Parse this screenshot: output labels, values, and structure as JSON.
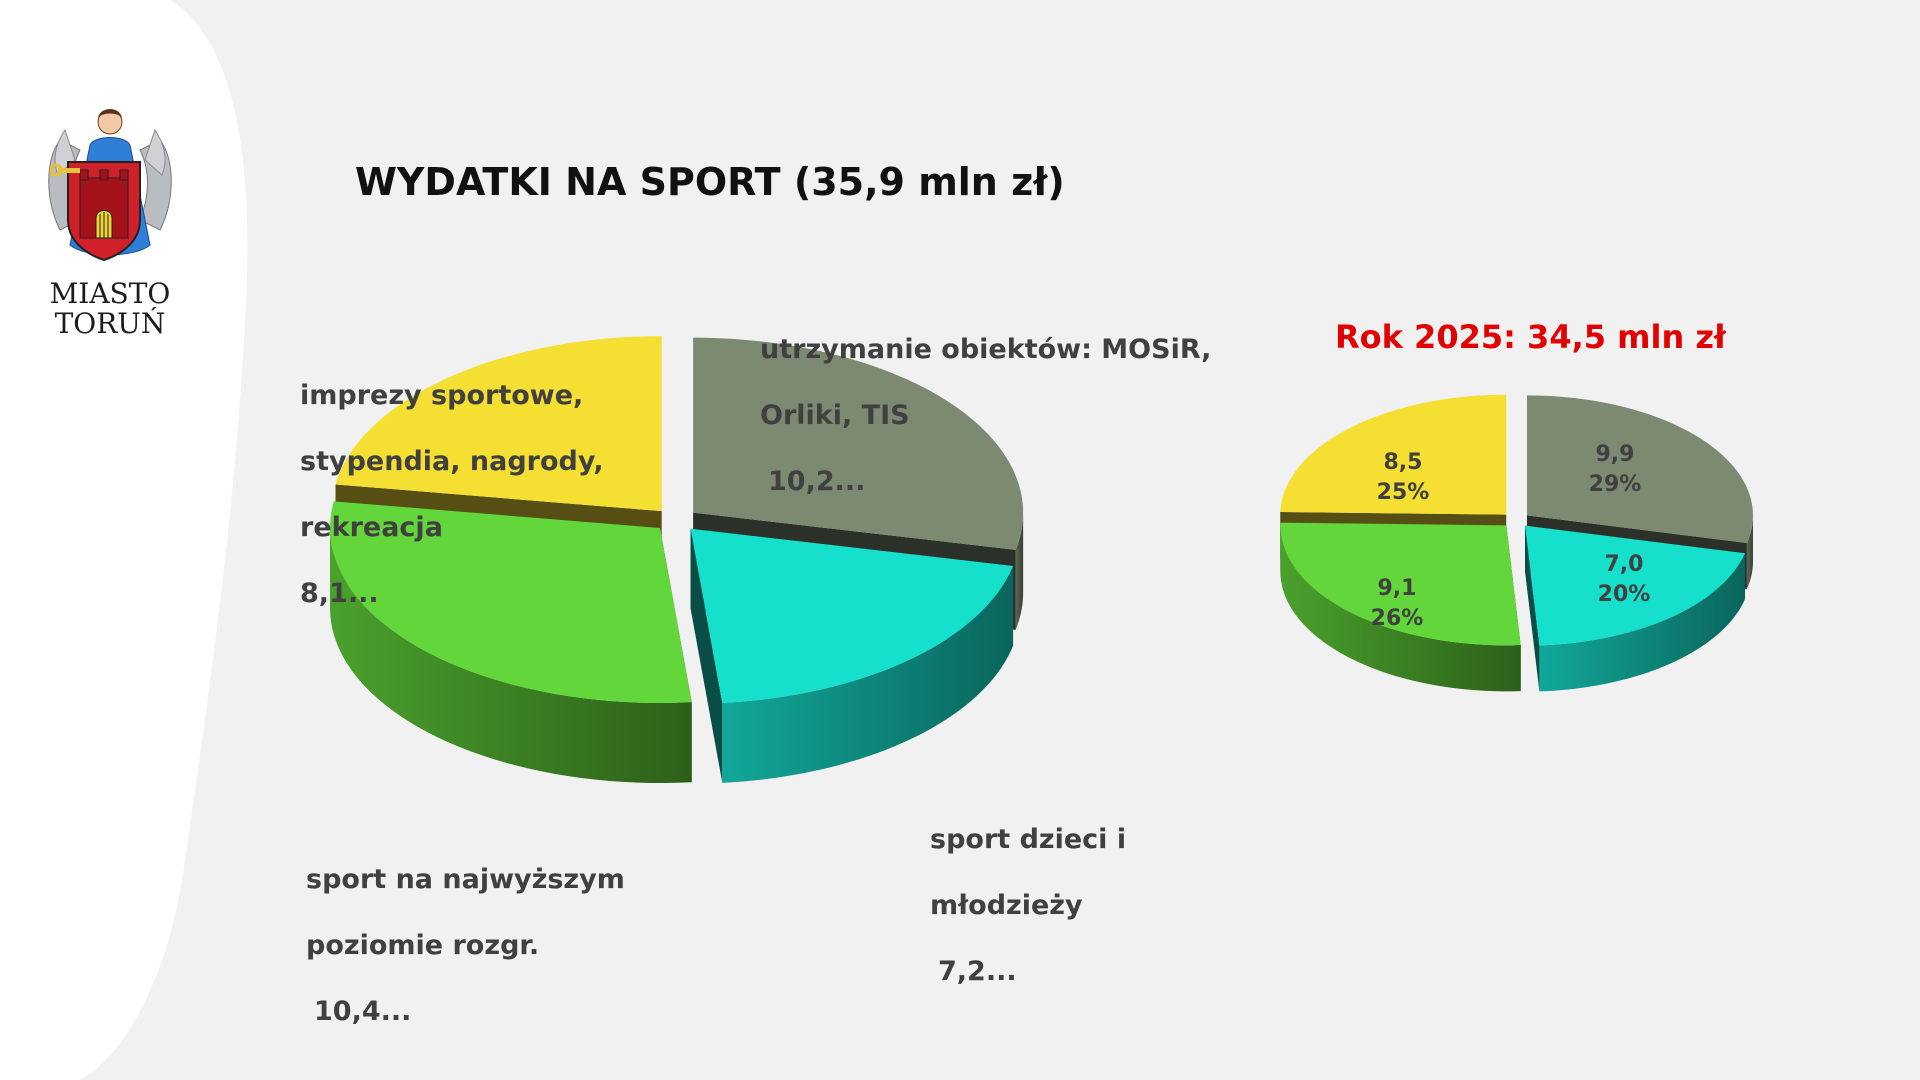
{
  "header": {
    "title": "WYDATKI NA SPORT (35,9 mln zł)",
    "logo_line1": "MIASTO",
    "logo_line2": "TORUŃ"
  },
  "side": {
    "title": "Rok 2025: 34,5 mln zł"
  },
  "colors": {
    "yellow": "#f5df33",
    "gray": "#7c8a72",
    "cyan": "#16e0cc",
    "green": "#62d63a",
    "title_red": "#e00000"
  },
  "chart_data": [
    {
      "type": "pie",
      "title": "WYDATKI NA SPORT (35,9 mln zł)",
      "slices": [
        {
          "label": "utrzymanie obiektów: MOSiR, Orliki, TIS",
          "value": 10.2,
          "value_text": "10,2...",
          "color": "#7c8a72"
        },
        {
          "label": "sport dzieci i młodzieży",
          "value": 7.2,
          "value_text": "7,2...",
          "color": "#16e0cc"
        },
        {
          "label": "sport na najwyższym poziomie rozgr.",
          "value": 10.4,
          "value_text": "10,4...",
          "color": "#62d63a"
        },
        {
          "label": "imprezy sportowe, stypendia, nagrody, rekreacja",
          "value": 8.1,
          "value_text": "8,1...",
          "color": "#f5df33"
        }
      ]
    },
    {
      "type": "pie",
      "title": "Rok 2025: 34,5 mln zł",
      "slices": [
        {
          "value": 9.9,
          "value_text": "9,9",
          "percent_text": "29%",
          "color": "#7c8a72"
        },
        {
          "value": 7.0,
          "value_text": "7,0",
          "percent_text": "20%",
          "color": "#16e0cc"
        },
        {
          "value": 9.1,
          "value_text": "9,1",
          "percent_text": "26%",
          "color": "#62d63a"
        },
        {
          "value": 8.5,
          "value_text": "8,5",
          "percent_text": "25%",
          "color": "#f5df33"
        }
      ]
    }
  ],
  "labels": {
    "gray_line1": "utrzymanie obiektów: MOSiR,",
    "gray_line2": "Orliki, TIS",
    "gray_value": "10,2...",
    "yellow_line1": "imprezy sportowe,",
    "yellow_line2": "stypendia, nagrody,",
    "yellow_line3": "rekreacja",
    "yellow_value": "8,1...",
    "green_line1": "sport na najwyższym",
    "green_line2": "poziomie rozgr.",
    "green_value": "10,4...",
    "cyan_line1": "sport dzieci i",
    "cyan_line2": "młodzieży",
    "cyan_value": "7,2..."
  }
}
